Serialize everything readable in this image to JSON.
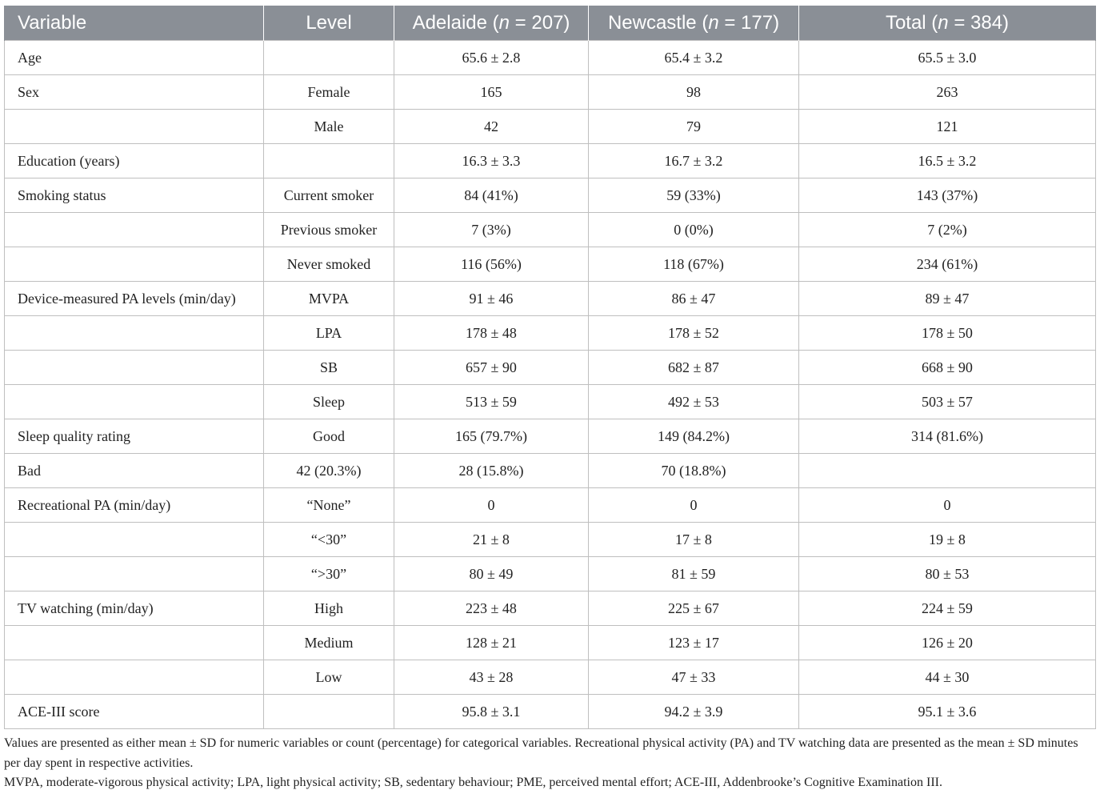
{
  "table": {
    "headers": {
      "variable": "Variable",
      "level": "Level",
      "adelaide_name": "Adelaide (",
      "adelaide_n": "n",
      "adelaide_count": " = 207)",
      "newcastle_name": "Newcastle (",
      "newcastle_n": "n",
      "newcastle_count": " = 177)",
      "total_name": "Total (",
      "total_n": "n",
      "total_count": " = 384)"
    },
    "rows": [
      {
        "variable": "Age",
        "level": "",
        "adelaide": "65.6 ± 2.8",
        "newcastle": "65.4 ± 3.2",
        "total": "65.5 ± 3.0"
      },
      {
        "variable": "Sex",
        "level": "Female",
        "adelaide": "165",
        "newcastle": "98",
        "total": "263"
      },
      {
        "variable": "",
        "level": "Male",
        "adelaide": "42",
        "newcastle": "79",
        "total": "121"
      },
      {
        "variable": "Education (years)",
        "level": "",
        "adelaide": "16.3 ± 3.3",
        "newcastle": "16.7 ± 3.2",
        "total": "16.5 ± 3.2"
      },
      {
        "variable": "Smoking status",
        "level": "Current smoker",
        "adelaide": "84 (41%)",
        "newcastle": "59 (33%)",
        "total": "143 (37%)"
      },
      {
        "variable": "",
        "level": "Previous smoker",
        "adelaide": "7 (3%)",
        "newcastle": "0 (0%)",
        "total": "7 (2%)"
      },
      {
        "variable": "",
        "level": "Never smoked",
        "adelaide": "116 (56%)",
        "newcastle": "118 (67%)",
        "total": "234 (61%)"
      },
      {
        "variable": "Device-measured PA levels (min/day)",
        "level": "MVPA",
        "adelaide": "91 ± 46",
        "newcastle": "86 ± 47",
        "total": "89 ± 47"
      },
      {
        "variable": "",
        "level": "LPA",
        "adelaide": "178 ± 48",
        "newcastle": "178 ± 52",
        "total": "178 ± 50"
      },
      {
        "variable": "",
        "level": "SB",
        "adelaide": "657 ± 90",
        "newcastle": "682 ± 87",
        "total": "668 ± 90"
      },
      {
        "variable": "",
        "level": "Sleep",
        "adelaide": "513 ± 59",
        "newcastle": "492 ± 53",
        "total": "503 ± 57"
      },
      {
        "variable": "Sleep quality rating",
        "level": "Good",
        "adelaide": "165 (79.7%)",
        "newcastle": "149 (84.2%)",
        "total": "314 (81.6%)"
      },
      {
        "variable": "Bad",
        "level": "42 (20.3%)",
        "adelaide": "28 (15.8%)",
        "newcastle": "70 (18.8%)",
        "total": ""
      },
      {
        "variable": "Recreational PA (min/day)",
        "level": "“None”",
        "adelaide": "0",
        "newcastle": "0",
        "total": "0"
      },
      {
        "variable": "",
        "level": "“<30”",
        "adelaide": "21 ± 8",
        "newcastle": "17 ± 8",
        "total": "19 ± 8"
      },
      {
        "variable": "",
        "level": "“>30”",
        "adelaide": "80 ± 49",
        "newcastle": "81 ± 59",
        "total": "80 ± 53"
      },
      {
        "variable": "TV watching (min/day)",
        "level": "High",
        "adelaide": "223 ± 48",
        "newcastle": "225 ± 67",
        "total": "224 ± 59"
      },
      {
        "variable": "",
        "level": "Medium",
        "adelaide": "128 ± 21",
        "newcastle": "123 ± 17",
        "total": "126 ± 20"
      },
      {
        "variable": "",
        "level": "Low",
        "adelaide": "43 ± 28",
        "newcastle": "47 ± 33",
        "total": "44 ± 30"
      },
      {
        "variable": "ACE-III score",
        "level": "",
        "adelaide": "95.8 ± 3.1",
        "newcastle": "94.2 ± 3.9",
        "total": "95.1 ± 3.6"
      }
    ]
  },
  "footnote": {
    "line1": "Values are presented as either mean ± SD for numeric variables or count (percentage) for categorical variables. Recreational physical activity (PA) and TV watching data are presented as the mean ± SD minutes per day spent in respective activities.",
    "line2": "MVPA, moderate-vigorous physical activity; LPA, light physical activity; SB, sedentary behaviour; PME, perceived mental effort; ACE-III, Addenbrooke’s Cognitive Examination III."
  },
  "colors": {
    "header_bg": "#8a8f96",
    "header_text": "#ffffff",
    "grid": "#bfbfbf"
  }
}
